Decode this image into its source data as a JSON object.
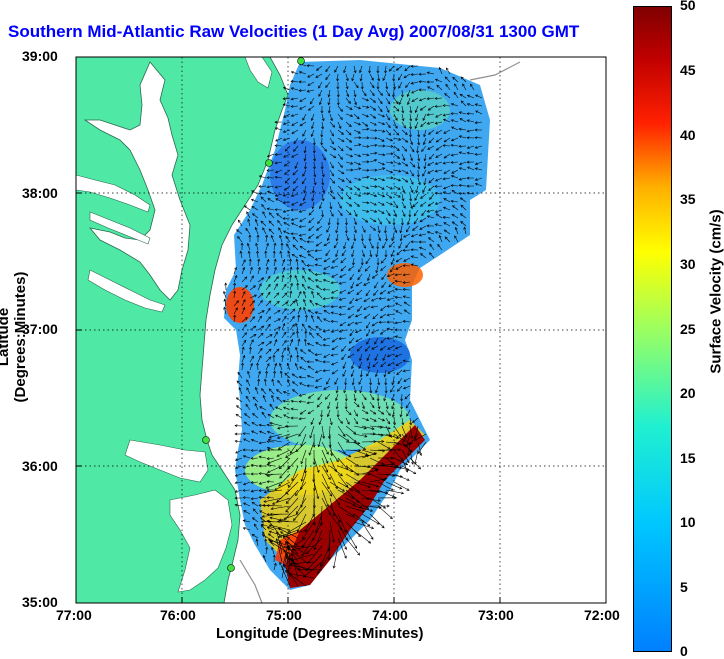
{
  "map": {
    "title": "Southern Mid-Atlantic Raw Velocities (1 Day Avg) 2007/08/31 1300 GMT",
    "xlabel": "Longitude (Degrees:Minutes)",
    "ylabel": "Latitude (Degrees:Minutes)",
    "x_ticks": [
      "77:00",
      "76:00",
      "75:00",
      "74:00",
      "73:00",
      "72:00"
    ],
    "y_ticks": [
      "39:00",
      "38:00",
      "37:00",
      "36:00",
      "35:00"
    ],
    "colors": {
      "land": "#4fe8a4",
      "water_bg": "#ffffff",
      "title": "#0000ff"
    }
  },
  "colorbar": {
    "label": "Surface Velocity (cm/s)",
    "ticks": [
      "50",
      "45",
      "40",
      "35",
      "30",
      "25",
      "20",
      "15",
      "10",
      "5",
      "0"
    ],
    "range": [
      0,
      50
    ]
  }
}
